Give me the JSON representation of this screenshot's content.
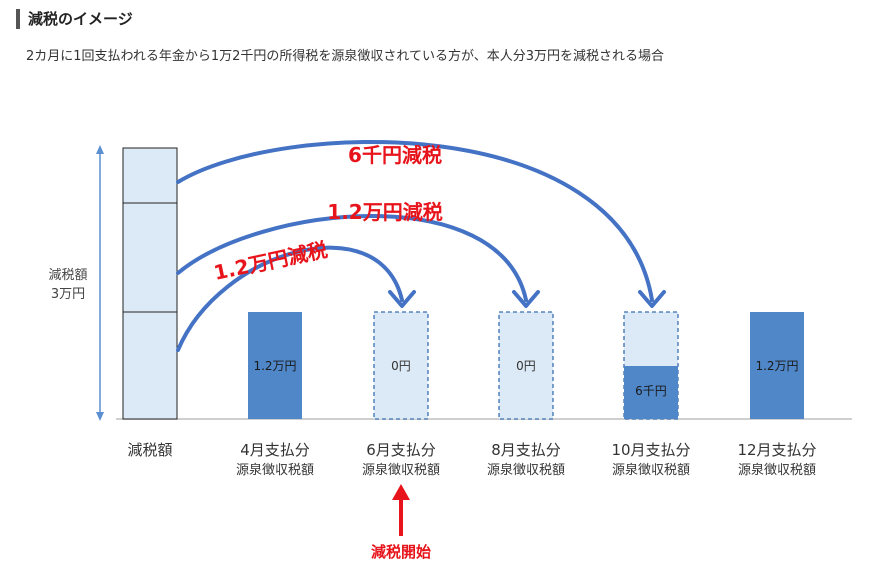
{
  "heading": "減税のイメージ",
  "subtitle": "2カ月に1回支払われる年金から1万2千円の所得税を源泉徴収されている方が、本人分3万円を減税される場合",
  "y_label": [
    "減税額",
    "3万円"
  ],
  "categories": [
    {
      "line1": "減税額",
      "line2": ""
    },
    {
      "line1": "4月支払分",
      "line2": "源泉徴収税額"
    },
    {
      "line1": "6月支払分",
      "line2": "源泉徴収税額"
    },
    {
      "line1": "8月支払分",
      "line2": "源泉徴収税額"
    },
    {
      "line1": "10月支払分",
      "line2": "源泉徴収税額"
    },
    {
      "line1": "12月支払分",
      "line2": "源泉徴収税額"
    }
  ],
  "bar_labels": [
    "",
    "1.2万円",
    "0円",
    "0円",
    "6千円",
    "1.2万円"
  ],
  "arrow_labels": [
    "1.2万円減税",
    "1.2万円減税",
    "6千円減税"
  ],
  "start_label": "減税開始",
  "colors": {
    "solid_blue": "#4f87c9",
    "light_blue": "#dce9f6",
    "border_blue": "#3a6fb0",
    "arrow_blue": "#4472c4",
    "red": "#e8141b"
  }
}
